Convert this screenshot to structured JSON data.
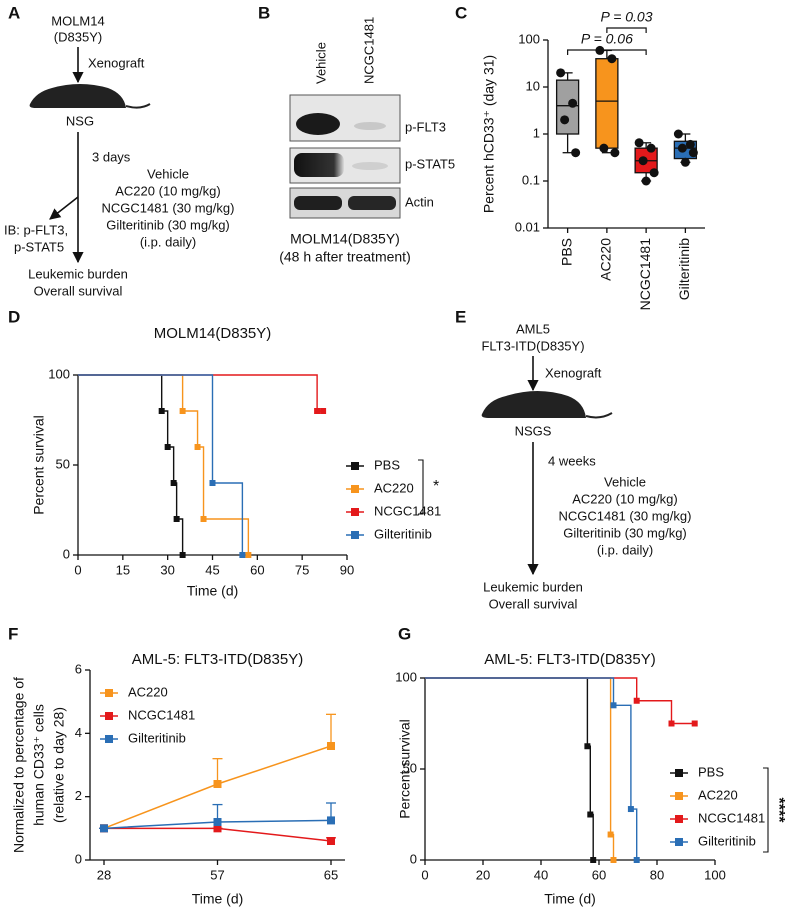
{
  "panel_labels": [
    "A",
    "B",
    "C",
    "D",
    "E",
    "F",
    "G"
  ],
  "schematic_a": {
    "cell_line": [
      "MOLM14",
      "(D835Y)"
    ],
    "step1": "Xenograft",
    "host": "NSG",
    "step2": "3 days",
    "readout": [
      "IB: p-FLT3,",
      "p-STAT5"
    ],
    "treatments": [
      "Vehicle",
      "AC220 (10 mg/kg)",
      "NCGC1481 (30 mg/kg)",
      "Gilteritinib (30 mg/kg)",
      "(i.p. daily)"
    ],
    "outcomes": [
      "Leukemic burden",
      "Overall survival"
    ]
  },
  "blot_b": {
    "lanes": [
      "Vehicle",
      "NCGC1481"
    ],
    "bands": [
      "p-FLT3",
      "p-STAT5",
      "Actin"
    ],
    "caption": [
      "MOLM14(D835Y)",
      "(48 h after treatment)"
    ]
  },
  "schematic_e": {
    "cell_line": [
      "AML5",
      "FLT3-ITD(D835Y)"
    ],
    "step1": "Xenograft",
    "host": "NSGS",
    "step2": "4 weeks",
    "treatments": [
      "Vehicle",
      "AC220 (10 mg/kg)",
      "NCGC1481 (30 mg/kg)",
      "Gilteritinib (30 mg/kg)",
      "(i.p. daily)"
    ],
    "outcomes": [
      "Leukemic burden",
      "Overall survival"
    ]
  },
  "chart_data": [
    {
      "type": "box",
      "ylabel": "Percent hCD33⁺ (day 31)",
      "log_y": true,
      "ylim": [
        0.01,
        100
      ],
      "yticks": [
        0.01,
        0.1,
        1,
        10,
        100
      ],
      "categories": [
        "PBS",
        "AC220",
        "NCGC1481",
        "Gilteritinib"
      ],
      "boxes": [
        {
          "color": "#a0a0a0",
          "min": 0.4,
          "q1": 1,
          "median": 4,
          "q3": 14,
          "max": 20,
          "points": [
            20,
            4.5,
            2,
            0.4
          ]
        },
        {
          "color": "#f7941d",
          "min": 0.4,
          "q1": 0.5,
          "median": 5,
          "q3": 40,
          "max": 60,
          "points": [
            60,
            40,
            0.5,
            0.4
          ]
        },
        {
          "color": "#e3191b",
          "min": 0.1,
          "q1": 0.15,
          "median": 0.27,
          "q3": 0.5,
          "max": 0.65,
          "points": [
            0.65,
            0.5,
            0.27,
            0.15,
            0.1
          ]
        },
        {
          "color": "#2a6eb5",
          "min": 0.25,
          "q1": 0.3,
          "median": 0.5,
          "q3": 0.7,
          "max": 1,
          "points": [
            1,
            0.6,
            0.5,
            0.4,
            0.25
          ]
        }
      ],
      "annotations": [
        "P = 0.03",
        "P = 0.06"
      ]
    },
    {
      "type": "survival",
      "title": "MOLM14(D835Y)",
      "xlabel": "Time (d)",
      "ylabel": "Percent survival",
      "xlim": [
        0,
        90
      ],
      "xticks": [
        0,
        15,
        30,
        45,
        60,
        75,
        90
      ],
      "ylim": [
        0,
        100
      ],
      "yticks": [
        0,
        50,
        100
      ],
      "series": [
        {
          "name": "PBS",
          "color": "#111111",
          "x": [
            0,
            28,
            30,
            32,
            33,
            35
          ],
          "values": [
            100,
            80,
            60,
            40,
            20,
            0
          ]
        },
        {
          "name": "AC220",
          "color": "#f7941d",
          "x": [
            0,
            35,
            40,
            42,
            57
          ],
          "values": [
            100,
            80,
            60,
            20,
            0
          ]
        },
        {
          "name": "NCGC1481",
          "color": "#e3191b",
          "x": [
            0,
            80,
            82
          ],
          "values": [
            100,
            80,
            80
          ]
        },
        {
          "name": "Gilteritinib",
          "color": "#2a6eb5",
          "x": [
            0,
            45,
            55
          ],
          "values": [
            100,
            40,
            0
          ]
        }
      ],
      "annotation": "*"
    },
    {
      "type": "line",
      "title": "AML-5: FLT3-ITD(D835Y)",
      "xlabel": "Time (d)",
      "ylabel": [
        "Normalized to percentage of",
        "human CD33⁺ cells",
        "(relative to day 28)"
      ],
      "categories": [
        28,
        57,
        65
      ],
      "ylim": [
        0,
        6
      ],
      "yticks": [
        0,
        2,
        4,
        6
      ],
      "series": [
        {
          "name": "AC220",
          "color": "#f7941d",
          "values": [
            1,
            2.4,
            3.6
          ],
          "errors": [
            0,
            0.8,
            1.0
          ]
        },
        {
          "name": "NCGC1481",
          "color": "#e3191b",
          "values": [
            1,
            1,
            0.6
          ],
          "errors": [
            0,
            0,
            0.1
          ]
        },
        {
          "name": "Gilteritinib",
          "color": "#2a6eb5",
          "values": [
            1,
            1.2,
            1.25
          ],
          "errors": [
            0,
            0.55,
            0.55
          ]
        }
      ]
    },
    {
      "type": "survival",
      "title": "AML-5: FLT3-ITD(D835Y)",
      "xlabel": "Time (d)",
      "ylabel": "Percent survival",
      "xlim": [
        0,
        100
      ],
      "xticks": [
        0,
        20,
        40,
        60,
        80,
        100
      ],
      "ylim": [
        0,
        100
      ],
      "yticks": [
        0,
        50,
        100
      ],
      "series": [
        {
          "name": "PBS",
          "color": "#111111",
          "x": [
            0,
            56,
            57,
            58
          ],
          "values": [
            100,
            62.5,
            25,
            0
          ]
        },
        {
          "name": "AC220",
          "color": "#f7941d",
          "x": [
            0,
            64,
            65
          ],
          "values": [
            100,
            14,
            0
          ]
        },
        {
          "name": "NCGC1481",
          "color": "#e3191b",
          "x": [
            0,
            73,
            85,
            93
          ],
          "values": [
            100,
            87.5,
            75,
            75
          ]
        },
        {
          "name": "Gilteritinib",
          "color": "#2a6eb5",
          "x": [
            0,
            65,
            71,
            73
          ],
          "values": [
            100,
            85,
            28,
            0
          ]
        }
      ],
      "annotation": "****"
    }
  ]
}
